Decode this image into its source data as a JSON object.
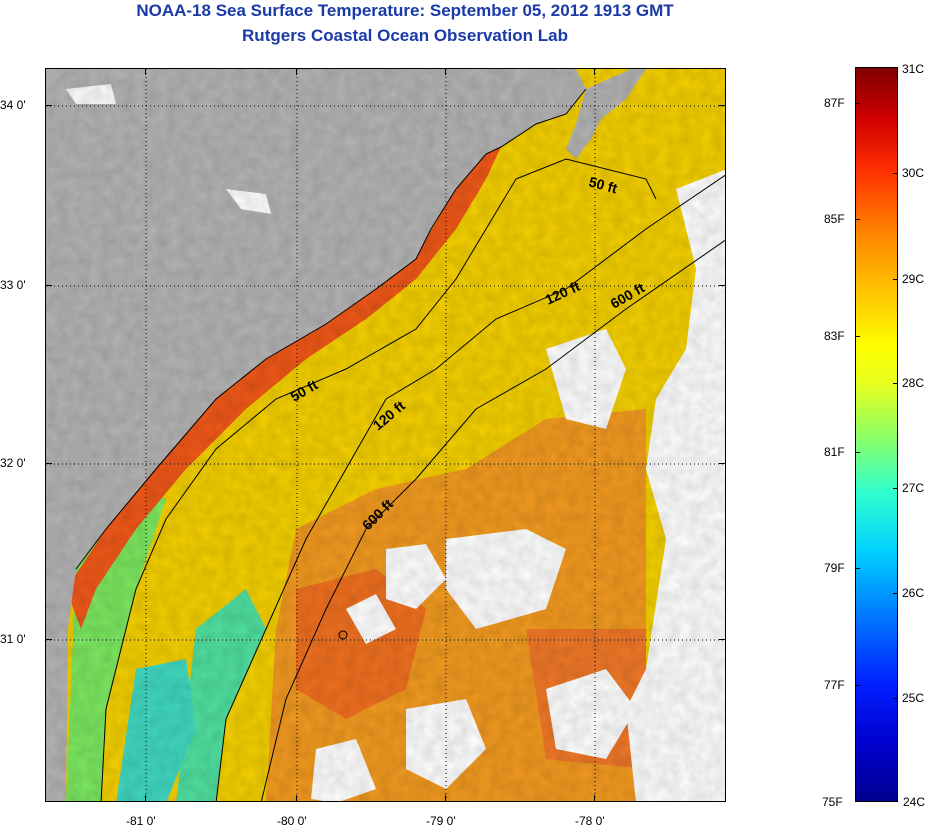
{
  "title": {
    "line1": "NOAA-18 Sea Surface Temperature:  September 05, 2012 1913 GMT",
    "line2": "Rutgers Coastal Ocean Observation Lab"
  },
  "map": {
    "lon_labels": [
      "-81 0'",
      "-80 0'",
      "-79 0'",
      "-78 0'"
    ],
    "lat_labels": [
      "34 0'",
      "33 0'",
      "32 0'",
      "31 0'"
    ],
    "contours": [
      {
        "id": "c50a",
        "label": "50 ft"
      },
      {
        "id": "c50b",
        "label": "50 ft"
      },
      {
        "id": "c120a",
        "label": "120 ft"
      },
      {
        "id": "c120b",
        "label": "120 ft"
      },
      {
        "id": "c600a",
        "label": "600 ft"
      },
      {
        "id": "c600b",
        "label": "600 ft"
      }
    ],
    "colors": {
      "land": "#b4b4b4",
      "cloud": "#ffffff",
      "warm": "#f07020",
      "mid": "#f8d800",
      "cool": "#30e0c0"
    }
  },
  "colorbar": {
    "celsius": [
      "31C",
      "30C",
      "29C",
      "28C",
      "27C",
      "26C",
      "25C",
      "24C"
    ],
    "fahrenheit": [
      "87F",
      "85F",
      "83F",
      "81F",
      "79F",
      "77F",
      "75F"
    ]
  }
}
